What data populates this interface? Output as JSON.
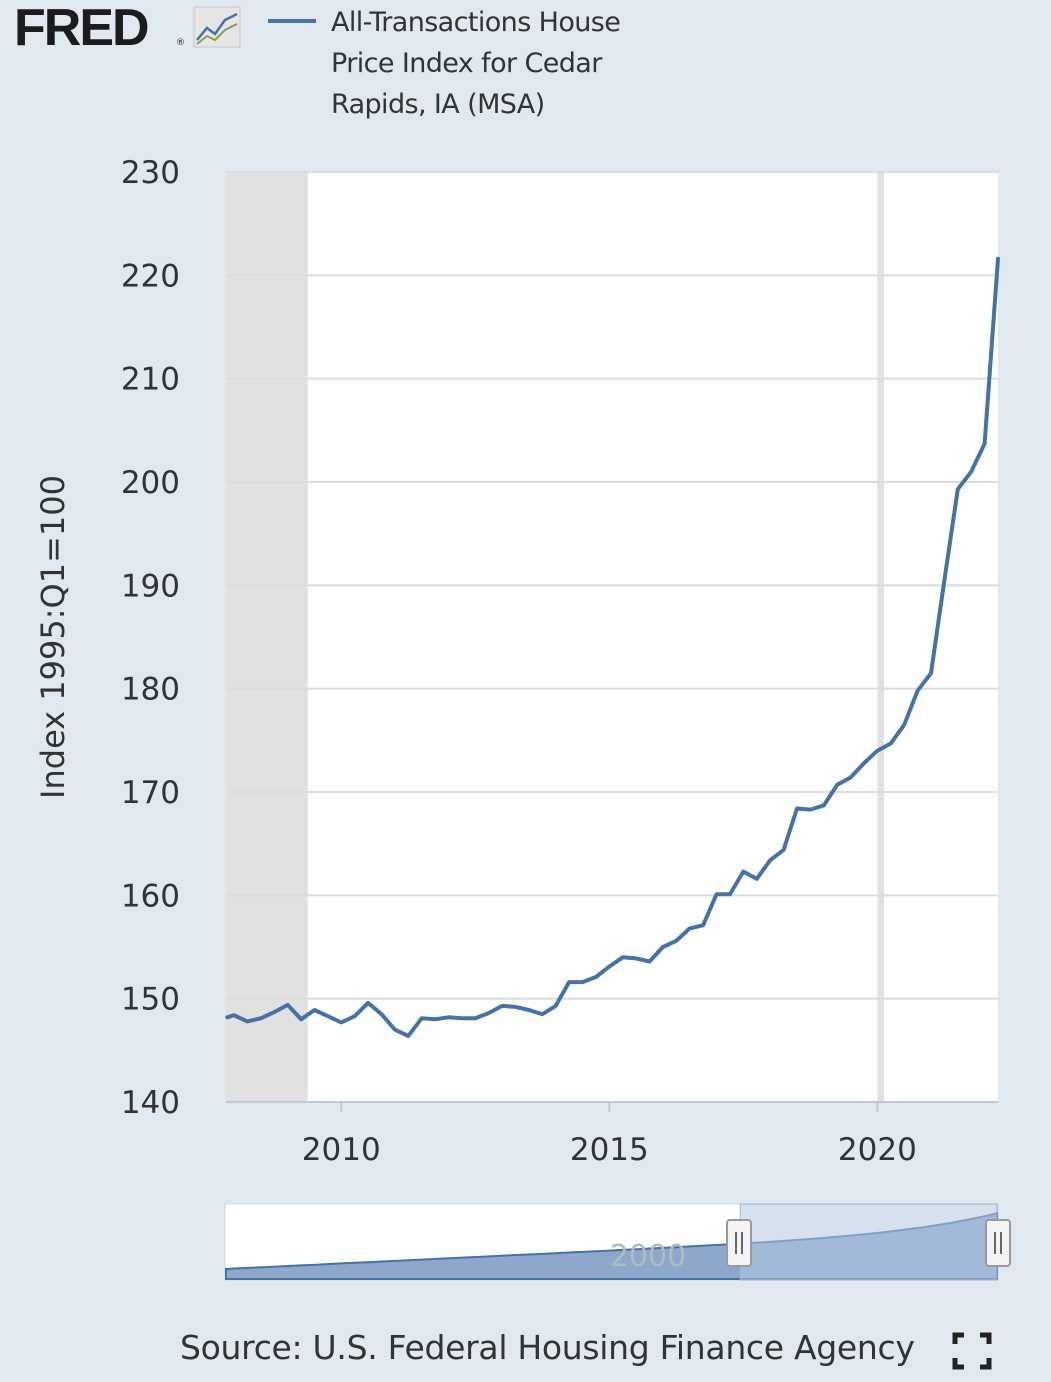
{
  "header": {
    "logo_text": "FRED",
    "logo_reg": "®",
    "logo_icon": "graph-line-icon",
    "legend_label": "All-Transactions House Price Index for Cedar Rapids, IA (MSA)"
  },
  "colors": {
    "series": "#4572a7",
    "background": "#e1e9f0",
    "plot_bg": "#ffffff",
    "recession": "#e1e1e1",
    "navigator_fill": "#8ea8cc",
    "navigator_selected": "#b4c6e2"
  },
  "chart_data": {
    "type": "line",
    "title": "",
    "xlabel": "",
    "ylabel": "Index 1995:Q1=100",
    "ylim": [
      140,
      230
    ],
    "yticks": [
      "140",
      "150",
      "160",
      "170",
      "180",
      "190",
      "200",
      "210",
      "220",
      "230"
    ],
    "xlim": [
      2007.85,
      2022.25
    ],
    "xticks": [
      "2010",
      "2015",
      "2020"
    ],
    "grid": true,
    "recessions": [
      [
        2007.85,
        2009.375
      ],
      [
        2020.0,
        2020.125
      ]
    ],
    "series": [
      {
        "name": "All-Transactions House Price Index for Cedar Rapids, IA (MSA)",
        "x": [
          2007.875,
          2008.0,
          2008.25,
          2008.5,
          2008.75,
          2009.0,
          2009.25,
          2009.5,
          2009.75,
          2010.0,
          2010.25,
          2010.5,
          2010.75,
          2011.0,
          2011.25,
          2011.5,
          2011.75,
          2012.0,
          2012.25,
          2012.5,
          2012.75,
          2013.0,
          2013.25,
          2013.5,
          2013.75,
          2014.0,
          2014.25,
          2014.5,
          2014.75,
          2015.0,
          2015.25,
          2015.5,
          2015.75,
          2016.0,
          2016.25,
          2016.5,
          2016.75,
          2017.0,
          2017.25,
          2017.5,
          2017.75,
          2018.0,
          2018.25,
          2018.5,
          2018.75,
          2019.0,
          2019.25,
          2019.5,
          2019.75,
          2020.0,
          2020.25,
          2020.5,
          2020.75,
          2021.0,
          2021.25,
          2021.5,
          2021.75,
          2022.0,
          2022.25
        ],
        "values": [
          148.2,
          148.4,
          147.8,
          148.1,
          148.7,
          149.4,
          148.0,
          148.9,
          148.3,
          147.7,
          148.3,
          149.6,
          148.5,
          147.0,
          146.4,
          148.1,
          148.0,
          148.2,
          148.1,
          148.1,
          148.6,
          149.3,
          149.2,
          148.9,
          148.5,
          149.3,
          151.6,
          151.6,
          152.1,
          153.1,
          154.0,
          153.9,
          153.6,
          155.0,
          155.6,
          156.8,
          157.1,
          160.1,
          160.1,
          162.3,
          161.6,
          163.4,
          164.4,
          168.4,
          168.3,
          168.7,
          170.7,
          171.4,
          172.8,
          174.0,
          174.7,
          176.5,
          179.8,
          181.5,
          190.5,
          199.3,
          201.0,
          203.7,
          221.6
        ]
      }
    ],
    "navigator": {
      "label": "2000",
      "selection": [
        0.667,
        1.0
      ]
    }
  },
  "source": {
    "label": "Source: U.S. Federal Housing Finance Agency"
  },
  "fullscreen": {
    "icon": "fullscreen-icon"
  }
}
